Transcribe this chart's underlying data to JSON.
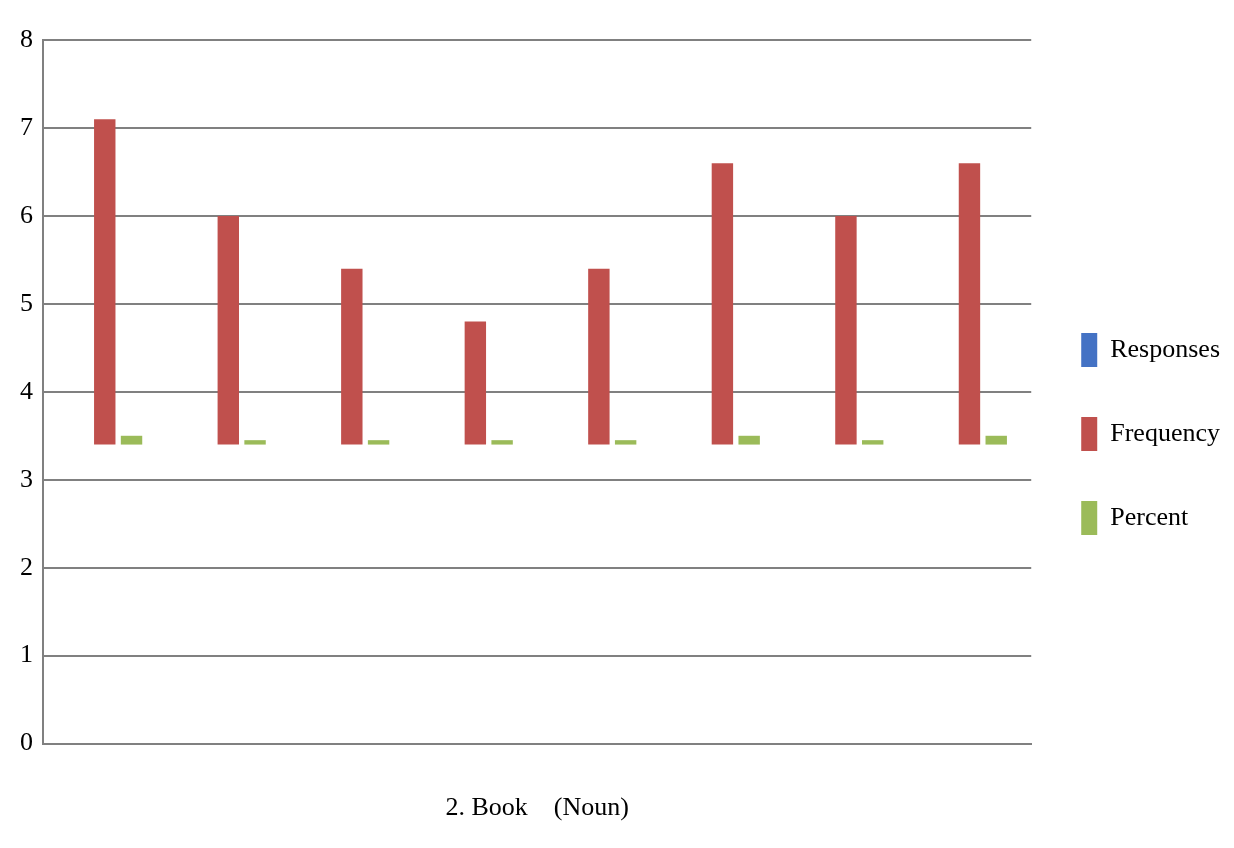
{
  "chart_data": {
    "type": "bar",
    "xlabel": "2. Book    (Noun)",
    "categories": [
      null,
      null,
      null,
      null,
      null,
      null,
      null,
      null
    ],
    "series": [
      {
        "name": "Responses",
        "color": "#4472c4",
        "values": [
          null,
          null,
          null,
          null,
          null,
          null,
          null,
          null
        ]
      },
      {
        "name": "Frequency",
        "color": "#c0504d",
        "base": [
          3.4,
          3.4,
          3.4,
          3.4,
          3.4,
          3.4,
          3.4,
          3.4
        ],
        "values": [
          3.7,
          2.6,
          2.0,
          1.4,
          2.0,
          3.2,
          2.6,
          3.2
        ]
      },
      {
        "name": "Percent",
        "color": "#9bbb59",
        "base": [
          3.4,
          3.4,
          3.4,
          3.4,
          3.4,
          3.4,
          3.4,
          3.4
        ],
        "values": [
          0.1,
          0.05,
          0.05,
          0.05,
          0.05,
          0.1,
          0.05,
          0.1
        ]
      }
    ],
    "ylim": [
      0,
      8
    ],
    "yticks": [
      0,
      1,
      2,
      3,
      4,
      5,
      6,
      7,
      8
    ],
    "grid": "y",
    "legend": "right"
  }
}
